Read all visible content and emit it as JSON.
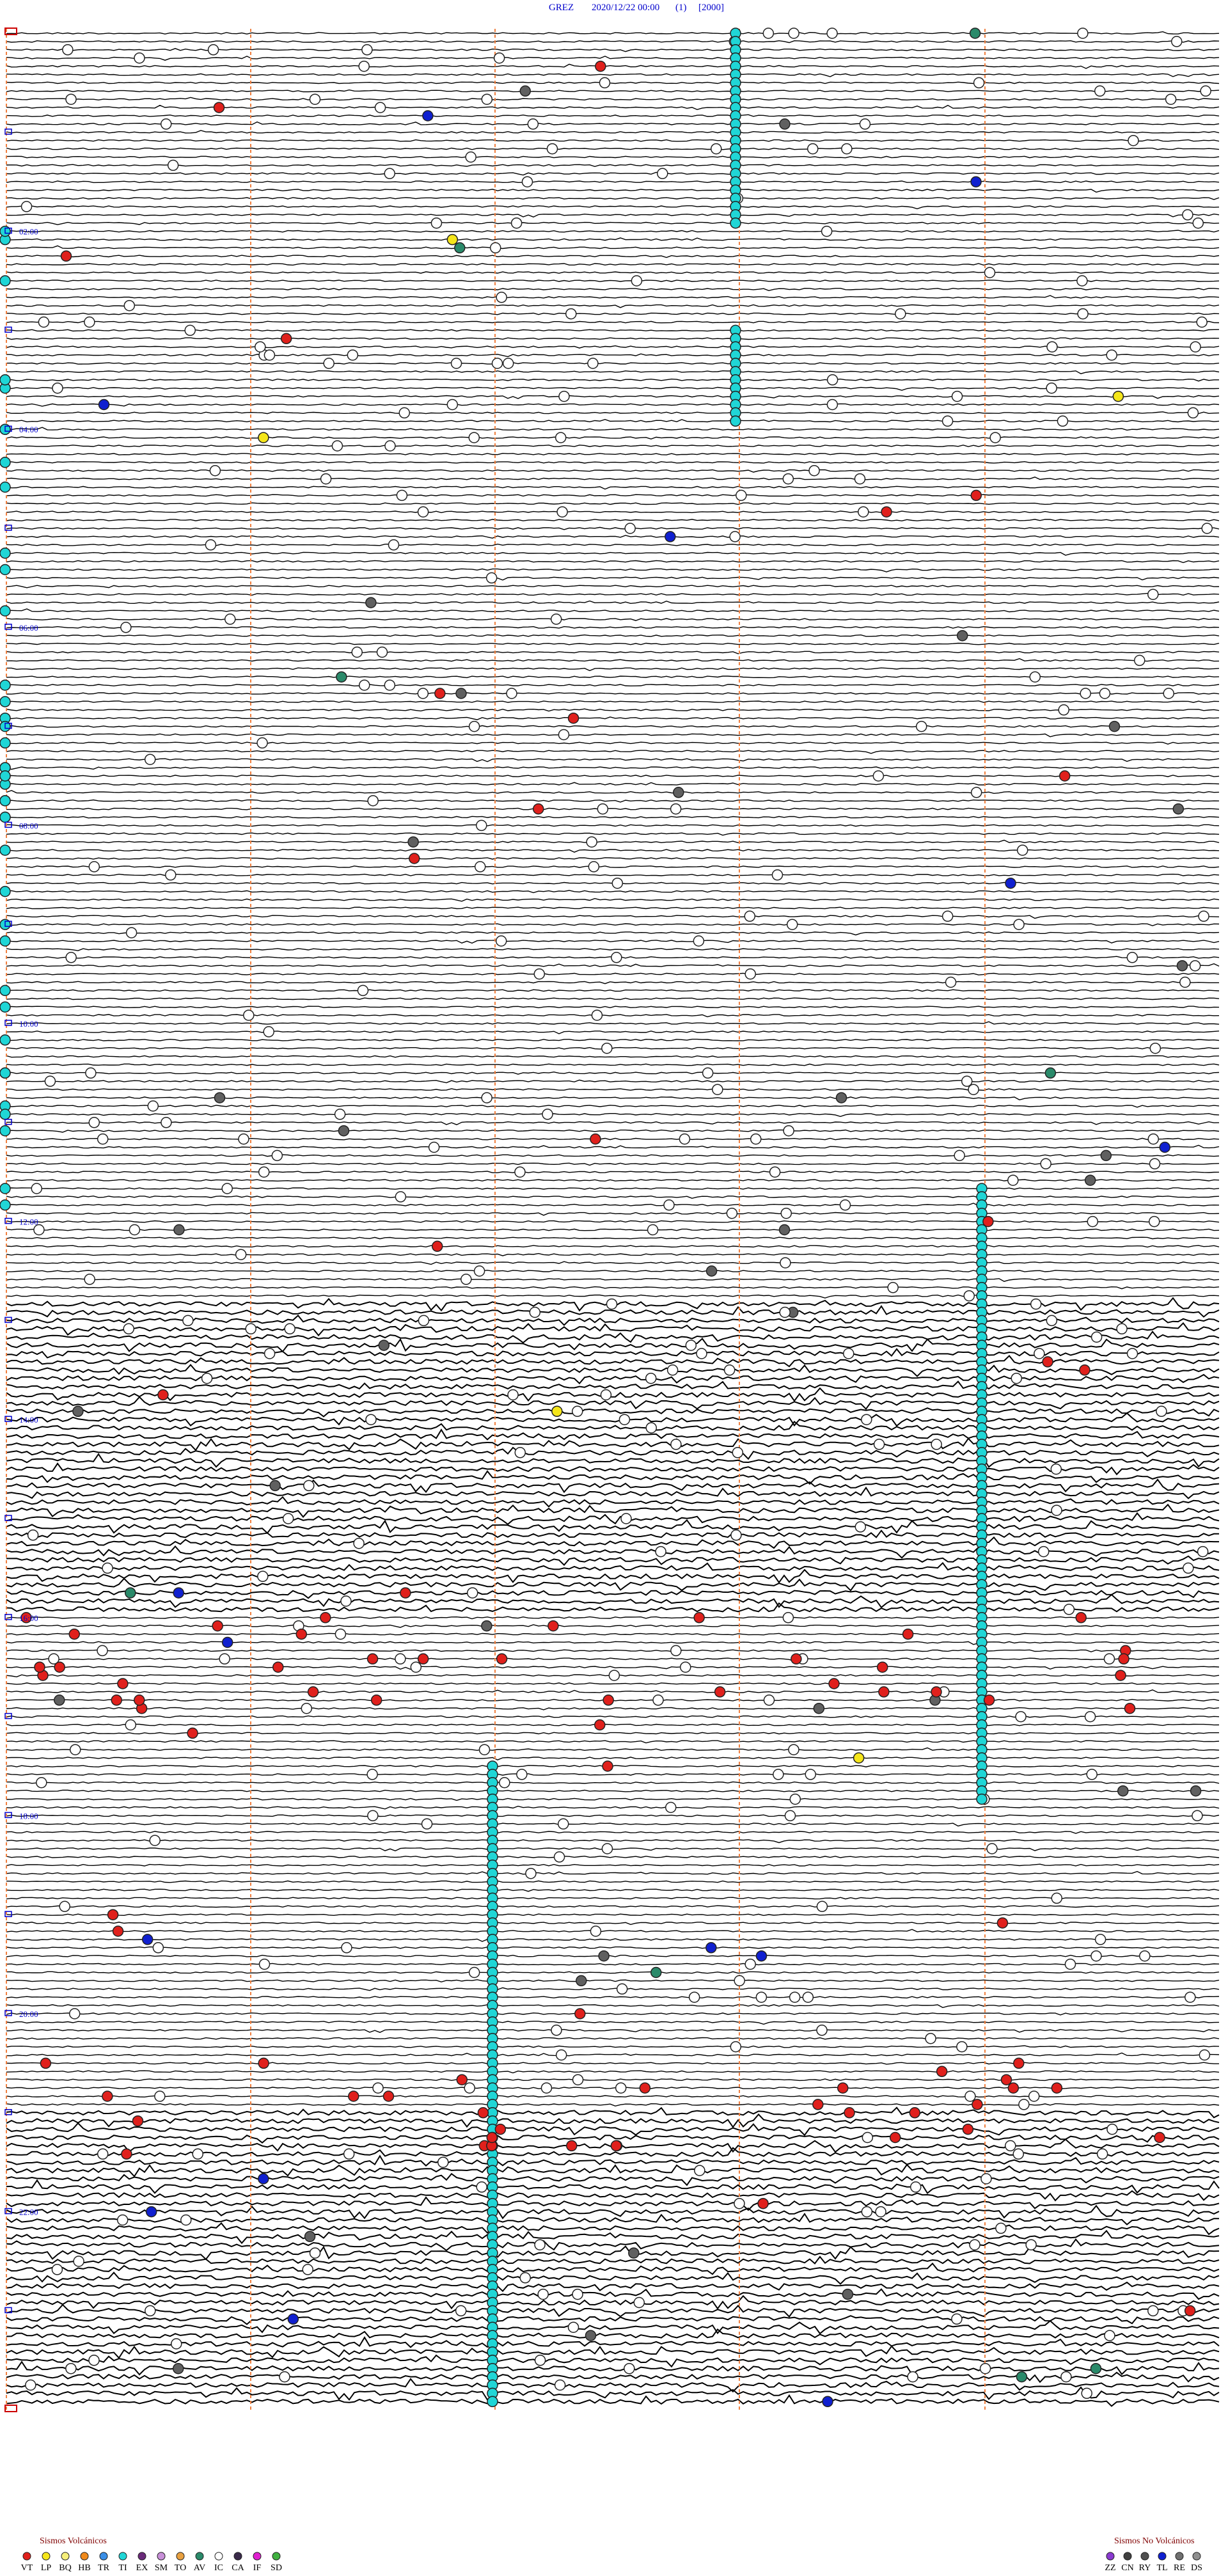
{
  "header": {
    "station": "GREZ",
    "datetime": "2020/12/22 00:00",
    "channel": "(1)",
    "scale": "[2000]"
  },
  "time_labels": [
    "02:00",
    "04:00",
    "06:00",
    "08:00",
    "10:00",
    "12:00",
    "14:00",
    "16:00",
    "18:00",
    "20:00",
    "22:00"
  ],
  "legend_volcanic": {
    "title": "Sismos Volcánicos",
    "items": [
      {
        "code": "VT",
        "color": "#e0201c"
      },
      {
        "code": "LP",
        "color": "#f5e61a"
      },
      {
        "code": "BQ",
        "color": "#f7f07a"
      },
      {
        "code": "HB",
        "color": "#f08a1c"
      },
      {
        "code": "TR",
        "color": "#3a8ee6"
      },
      {
        "code": "TI",
        "color": "#20d6d6"
      },
      {
        "code": "EX",
        "color": "#6a2a7a"
      },
      {
        "code": "SM",
        "color": "#c890d8"
      },
      {
        "code": "TO",
        "color": "#e8a040"
      },
      {
        "code": "AV",
        "color": "#2a8a6a"
      },
      {
        "code": "IC",
        "color": "#ffffff"
      },
      {
        "code": "CA",
        "color": "#3a2a4a"
      },
      {
        "code": "IF",
        "color": "#e020d0"
      },
      {
        "code": "SD",
        "color": "#40b040"
      }
    ]
  },
  "legend_non_volcanic": {
    "title": "Sismos No Volcánicos",
    "items": [
      {
        "code": "ZZ",
        "color": "#8a3ad0"
      },
      {
        "code": "CN",
        "color": "#404040"
      },
      {
        "code": "RY",
        "color": "#505050"
      },
      {
        "code": "TL",
        "color": "#1020d0"
      },
      {
        "code": "RE",
        "color": "#707070"
      },
      {
        "code": "DS",
        "color": "#909090"
      }
    ]
  }
}
